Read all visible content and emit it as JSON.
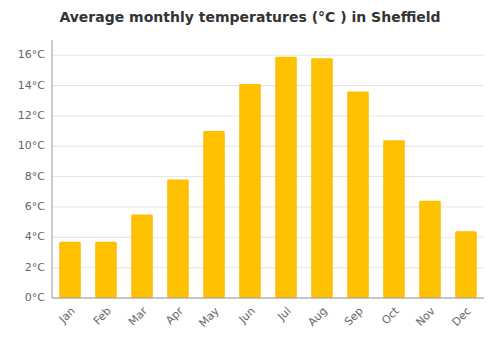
{
  "chart_data": {
    "type": "bar",
    "title": "Average monthly temperatures (°C ) in Sheffield",
    "categories": [
      "Jan",
      "Feb",
      "Mar",
      "Apr",
      "May",
      "Jun",
      "Jul",
      "Aug",
      "Sep",
      "Oct",
      "Nov",
      "Dec"
    ],
    "values": [
      3.7,
      3.7,
      5.5,
      7.8,
      11.0,
      14.1,
      15.9,
      15.8,
      13.6,
      10.4,
      6.4,
      4.4
    ],
    "color": "#FFC000",
    "ylim": [
      0,
      17
    ],
    "yticks": [
      {
        "value": 0,
        "label": "0°C"
      },
      {
        "value": 2,
        "label": "2°C"
      },
      {
        "value": 4,
        "label": "4°C"
      },
      {
        "value": 6,
        "label": "6°C"
      },
      {
        "value": 8,
        "label": "8°C"
      },
      {
        "value": 10,
        "label": "10°C"
      },
      {
        "value": 12,
        "label": "12°C"
      },
      {
        "value": 14,
        "label": "14°C"
      },
      {
        "value": 16,
        "label": "16°C"
      }
    ],
    "grid": true
  }
}
